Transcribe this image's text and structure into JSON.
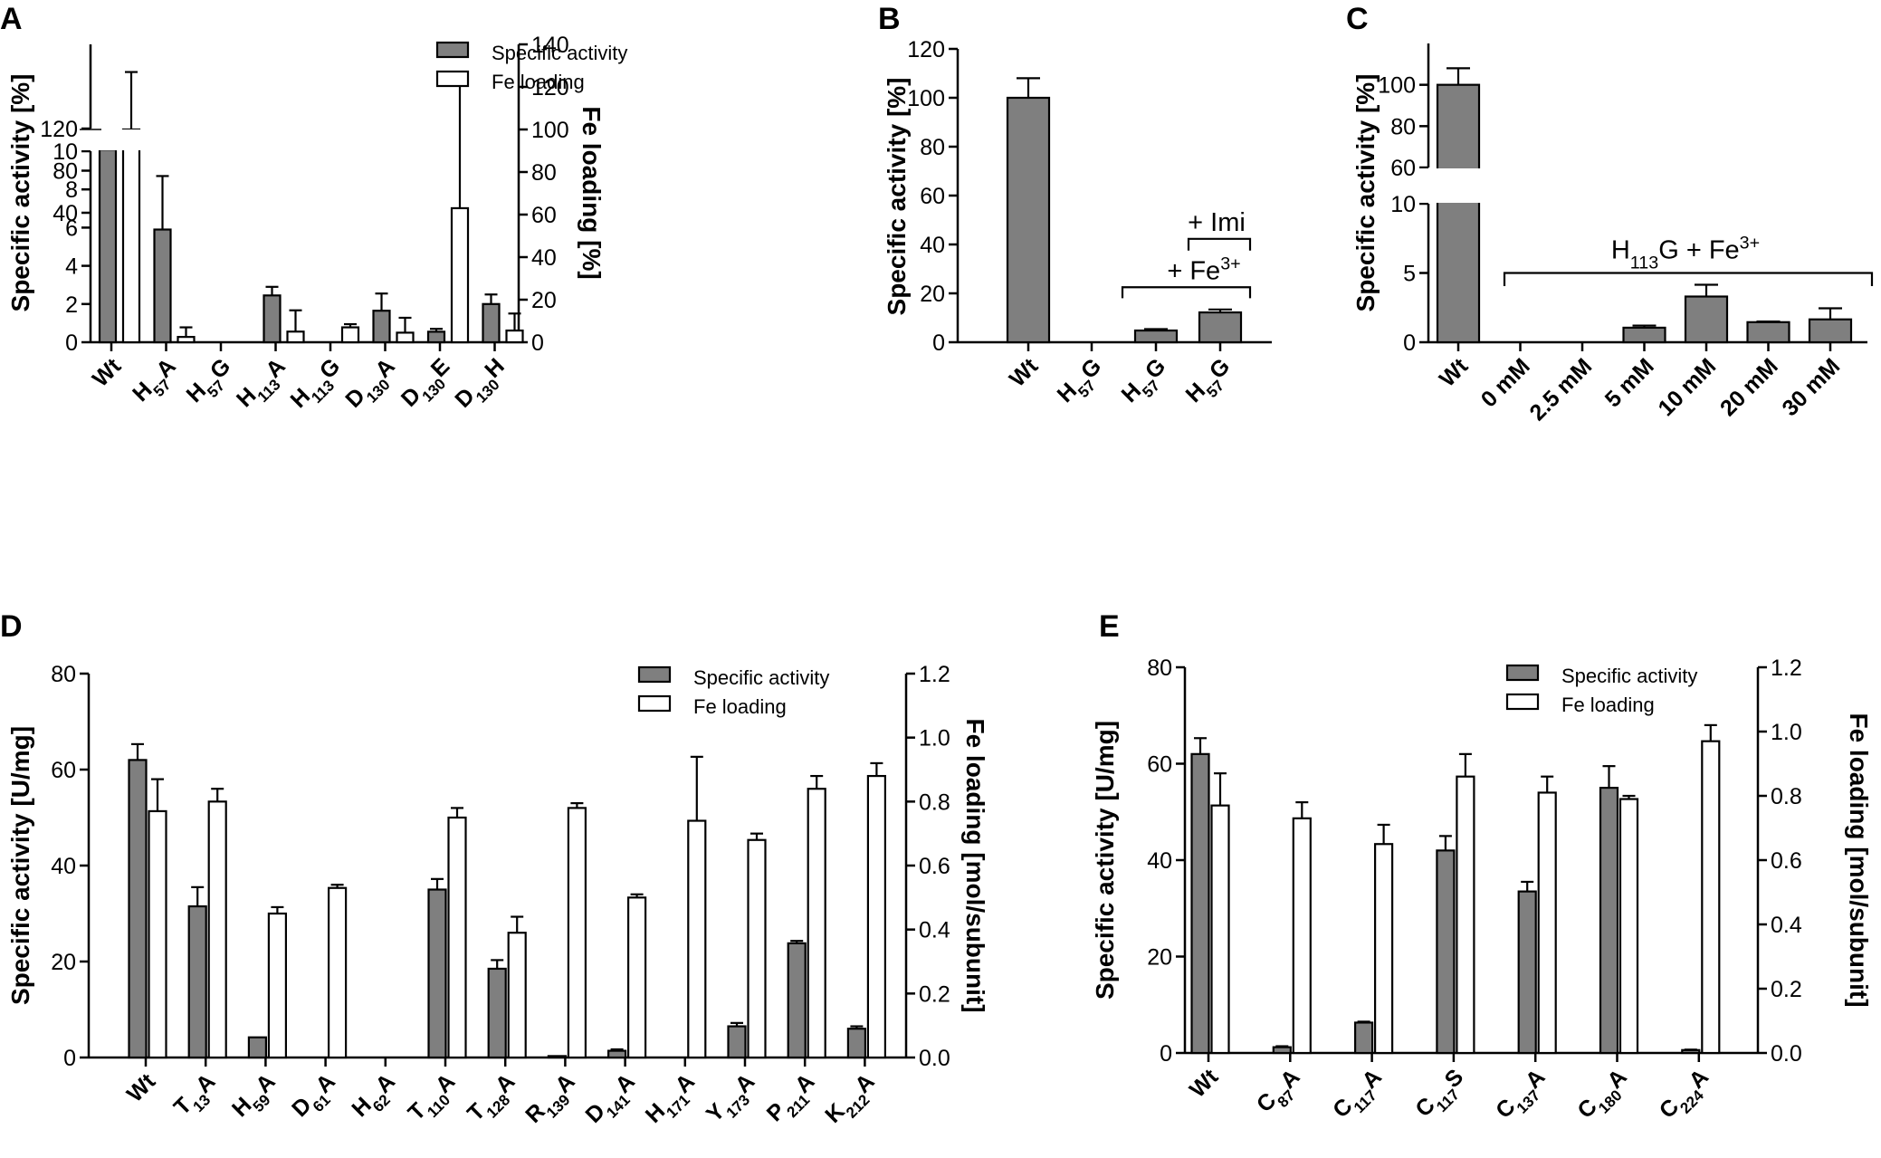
{
  "colors": {
    "activity_bar": "#7f7f7f",
    "fe_bar": "#ffffff",
    "stroke": "#000000"
  },
  "chart_data": [
    {
      "panel": "A",
      "type": "bar",
      "ylabel": "Specific activity [%]",
      "y2label": "Fe loading [%]",
      "y_ticks_lower": [
        "0",
        "2",
        "4",
        "6",
        "8",
        "10"
      ],
      "y_ticks_upper": [
        "40",
        "80",
        "120"
      ],
      "y2_ticks": [
        "0",
        "20",
        "40",
        "60",
        "80",
        "100",
        "120",
        "140"
      ],
      "y_break": true,
      "y_lower_range": [
        0,
        10
      ],
      "y_upper_range": [
        10,
        120
      ],
      "y2_range": [
        0,
        140
      ],
      "legend": [
        "Specific activity",
        "Fe loading"
      ],
      "categories": [
        {
          "base": "Wt",
          "sub": ""
        },
        {
          "base": "H",
          "sub": "57",
          "suffix": "A"
        },
        {
          "base": "H",
          "sub": "57",
          "suffix": "G"
        },
        {
          "base": "H",
          "sub": "113",
          "suffix": "A"
        },
        {
          "base": "H",
          "sub": "113",
          "suffix": "G"
        },
        {
          "base": "D",
          "sub": "130",
          "suffix": "A"
        },
        {
          "base": "D",
          "sub": "130",
          "suffix": "E"
        },
        {
          "base": "D",
          "sub": "130",
          "suffix": "H"
        }
      ],
      "series": [
        {
          "name": "Specific activity",
          "values": [
            100,
            5.9,
            0,
            2.45,
            0,
            1.65,
            0.55,
            2.0
          ],
          "errors": [
            4,
            2.8,
            0,
            0.45,
            0,
            0.9,
            0.15,
            0.5
          ]
        },
        {
          "name": "Fe loading",
          "values": [
            100,
            2.5,
            0,
            5,
            7,
            4.5,
            63,
            5.5
          ],
          "errors": [
            27,
            4.5,
            0,
            10,
            1.5,
            7,
            62,
            8
          ]
        }
      ]
    },
    {
      "panel": "B",
      "type": "bar",
      "ylabel": "Specific activity [%]",
      "y_ticks": [
        "0",
        "20",
        "40",
        "60",
        "80",
        "100",
        "120"
      ],
      "y_range": [
        0,
        120
      ],
      "categories": [
        {
          "base": "Wt",
          "sub": ""
        },
        {
          "base": "H",
          "sub": "57",
          "suffix": "G"
        },
        {
          "base": "H",
          "sub": "57",
          "suffix": "G"
        },
        {
          "base": "H",
          "sub": "57",
          "suffix": "G"
        }
      ],
      "values": [
        100,
        0,
        4.8,
        12.2
      ],
      "errors": [
        8,
        0,
        0.6,
        1.2
      ],
      "annotations": [
        {
          "text": "+ Fe",
          "sup": "3+"
        },
        {
          "text": "+ Imi"
        }
      ]
    },
    {
      "panel": "C",
      "type": "bar",
      "ylabel": "Specific activity [%]",
      "y_ticks_lower": [
        "0",
        "5",
        "10"
      ],
      "y_ticks_upper": [
        "60",
        "80",
        "100"
      ],
      "y_break": true,
      "categories": [
        "Wt",
        "0 mM",
        "2.5 mM",
        "5 mM",
        "10 mM",
        "20 mM",
        "30 mM"
      ],
      "values": [
        100,
        0,
        0,
        1.05,
        3.3,
        1.45,
        1.65
      ],
      "errors": [
        8,
        0,
        0,
        0.15,
        0.85,
        0.05,
        0.8
      ],
      "annotations": [
        {
          "text": "H",
          "sub": "113",
          "suffix": "G + Fe",
          "sup": "3+"
        }
      ]
    },
    {
      "panel": "D",
      "type": "bar",
      "ylabel": "Specific activity [U/mg]",
      "y2label": "Fe loading [mol/subunit]",
      "y_ticks": [
        "0",
        "20",
        "40",
        "60",
        "80"
      ],
      "y_range": [
        0,
        80
      ],
      "y2_ticks": [
        "0.0",
        "0.2",
        "0.4",
        "0.6",
        "0.8",
        "1.0",
        "1.2"
      ],
      "y2_range": [
        0,
        1.2
      ],
      "legend": [
        "Specific activity",
        "Fe loading"
      ],
      "categories": [
        {
          "base": "Wt",
          "sub": ""
        },
        {
          "base": "T",
          "sub": "13",
          "suffix": "A"
        },
        {
          "base": "H",
          "sub": "59",
          "suffix": "A"
        },
        {
          "base": "D",
          "sub": "61",
          "suffix": "A"
        },
        {
          "base": "H",
          "sub": "62",
          "suffix": "A"
        },
        {
          "base": "T",
          "sub": "110",
          "suffix": "A"
        },
        {
          "base": "T",
          "sub": "128",
          "suffix": "A"
        },
        {
          "base": "R",
          "sub": "139",
          "suffix": "A"
        },
        {
          "base": "D",
          "sub": "141",
          "suffix": "A"
        },
        {
          "base": "H",
          "sub": "171",
          "suffix": "A"
        },
        {
          "base": "Y",
          "sub": "173",
          "suffix": "A"
        },
        {
          "base": "P",
          "sub": "211",
          "suffix": "A"
        },
        {
          "base": "K",
          "sub": "212",
          "suffix": "A"
        }
      ],
      "series": [
        {
          "name": "Specific activity",
          "values": [
            62,
            31.5,
            4.2,
            0,
            0,
            35,
            18.5,
            0.3,
            1.4,
            0,
            6.5,
            23.8,
            6
          ],
          "errors": [
            3.3,
            4,
            0,
            0,
            0,
            2.2,
            1.8,
            0,
            0.3,
            0,
            0.7,
            0.5,
            0.5
          ]
        },
        {
          "name": "Fe loading",
          "values": [
            0.77,
            0.8,
            0.45,
            0.53,
            0,
            0.75,
            0.39,
            0.78,
            0.5,
            0.74,
            0.68,
            0.84,
            0.88
          ],
          "errors": [
            0.1,
            0.04,
            0.02,
            0.01,
            0,
            0.03,
            0.05,
            0.015,
            0.01,
            0.2,
            0.02,
            0.04,
            0.04
          ]
        }
      ]
    },
    {
      "panel": "E",
      "type": "bar",
      "ylabel": "Specific activity [U/mg]",
      "y2label": "Fe loading [mol/subunit]",
      "y_ticks": [
        "0",
        "20",
        "40",
        "60",
        "80"
      ],
      "y_range": [
        0,
        80
      ],
      "y2_ticks": [
        "0.0",
        "0.2",
        "0.4",
        "0.6",
        "0.8",
        "1.0",
        "1.2"
      ],
      "y2_range": [
        0,
        1.2
      ],
      "legend": [
        "Specific activity",
        "Fe loading"
      ],
      "categories": [
        {
          "base": "Wt",
          "sub": ""
        },
        {
          "base": "C",
          "sub": "87",
          "suffix": "A"
        },
        {
          "base": "C",
          "sub": "117",
          "suffix": "A"
        },
        {
          "base": "C",
          "sub": "117",
          "suffix": "S"
        },
        {
          "base": "C",
          "sub": "137",
          "suffix": "A"
        },
        {
          "base": "C",
          "sub": "180",
          "suffix": "A"
        },
        {
          "base": "C",
          "sub": "224",
          "suffix": "A"
        }
      ],
      "series": [
        {
          "name": "Specific activity",
          "values": [
            62,
            1.2,
            6.3,
            42,
            33.5,
            55,
            0.6
          ],
          "errors": [
            3.3,
            0.2,
            0.2,
            3,
            2,
            4.5,
            0.1
          ]
        },
        {
          "name": "Fe loading",
          "values": [
            0.77,
            0.73,
            0.65,
            0.86,
            0.81,
            0.79,
            0.97
          ],
          "errors": [
            0.1,
            0.05,
            0.06,
            0.07,
            0.05,
            0.01,
            0.05
          ]
        }
      ]
    }
  ]
}
